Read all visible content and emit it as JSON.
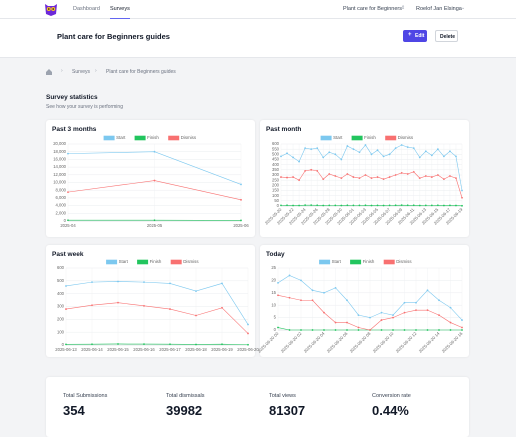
{
  "nav": {
    "links": [
      "Dashboard",
      "Surveys"
    ],
    "project": "Plant care for Beginners",
    "user": "Roelof Jan Elsinga"
  },
  "header": {
    "title": "Plant care for Beginners guides",
    "buttons": [
      "Edit",
      "Delete"
    ]
  },
  "breadcrumb": [
    "Surveys",
    "Plant care for Beginners guides"
  ],
  "section": {
    "title": "Survey statistics",
    "subtitle": "See how your survey is performing"
  },
  "chart_data": [
    {
      "type": "line",
      "title": "Past 3 months",
      "legend": "top",
      "grid": true,
      "categories": [
        "2025-04",
        "2025-05",
        "2025-06"
      ],
      "series": [
        {
          "name": "Start",
          "color": "#7cc8ef",
          "values": [
            17500,
            18000,
            9500
          ]
        },
        {
          "name": "Finish",
          "color": "#22c55e",
          "values": [
            200,
            200,
            150
          ]
        },
        {
          "name": "Dismiss",
          "color": "#f87171",
          "values": [
            7500,
            10500,
            5500
          ]
        }
      ],
      "ylim": [
        0,
        20000
      ],
      "yticks": [
        0,
        {
          "value": 2000,
          "label": "2,000"
        },
        {
          "value": 4000,
          "label": "4,000"
        },
        {
          "value": 6000,
          "label": "6,000"
        },
        {
          "value": 8000,
          "label": "8,000"
        },
        {
          "value": 10000,
          "label": "10,000"
        },
        {
          "value": 12000,
          "label": "12,000"
        },
        {
          "value": 14000,
          "label": "14,000"
        },
        {
          "value": 16000,
          "label": "16,000"
        },
        {
          "value": 18000,
          "label": "18,000"
        },
        {
          "value": 20000,
          "label": "20,000"
        }
      ]
    },
    {
      "type": "line",
      "title": "Past month",
      "legend": "top",
      "grid": true,
      "rotate_labels": true,
      "categories": [
        "2025-05-20",
        null,
        "2025-05-22",
        null,
        "2025-05-24",
        null,
        "2025-05-26",
        null,
        "2025-05-28",
        null,
        "2025-05-30",
        null,
        "2025-06-01",
        null,
        "2025-06-03",
        null,
        "2025-06-05",
        null,
        "2025-06-07",
        null,
        "2025-06-09",
        null,
        "2025-06-11",
        null,
        "2025-06-13",
        null,
        "2025-06-15",
        null,
        "2025-06-17",
        null,
        "2025-06-19"
      ],
      "series": [
        {
          "name": "Start",
          "color": "#7cc8ef",
          "values": [
            480,
            510,
            470,
            430,
            560,
            550,
            560,
            470,
            520,
            500,
            450,
            580,
            550,
            520,
            590,
            500,
            540,
            480,
            500,
            560,
            590,
            570,
            560,
            470,
            530,
            490,
            550,
            480,
            530,
            480,
            150
          ]
        },
        {
          "name": "Finish",
          "color": "#22c55e",
          "values": [
            6,
            7,
            5,
            5,
            8,
            8,
            7,
            5,
            6,
            6,
            5,
            7,
            6,
            6,
            7,
            5,
            6,
            5,
            6,
            7,
            8,
            7,
            7,
            5,
            6,
            6,
            7,
            5,
            6,
            5,
            2
          ]
        },
        {
          "name": "Dismiss",
          "color": "#f87171",
          "values": [
            280,
            275,
            280,
            250,
            340,
            350,
            340,
            260,
            310,
            290,
            270,
            310,
            280,
            270,
            300,
            270,
            280,
            260,
            280,
            300,
            320,
            310,
            330,
            270,
            290,
            280,
            300,
            260,
            290,
            270,
            80
          ]
        }
      ],
      "ylim": [
        0,
        600
      ],
      "yticks": [
        0,
        50,
        100,
        150,
        200,
        250,
        300,
        350,
        400,
        450,
        500,
        550,
        600
      ]
    },
    {
      "type": "line",
      "title": "Past week",
      "legend": "top",
      "grid": true,
      "categories": [
        "2025-06-13",
        "2025-06-14",
        "2025-06-15",
        "2025-06-16",
        "2025-06-17",
        "2025-06-18",
        "2025-06-19",
        "2025-06-20"
      ],
      "series": [
        {
          "name": "Start",
          "color": "#7cc8ef",
          "values": [
            460,
            490,
            495,
            490,
            480,
            420,
            480,
            160
          ]
        },
        {
          "name": "Finish",
          "color": "#22c55e",
          "values": [
            5,
            6,
            8,
            7,
            6,
            4,
            6,
            2
          ]
        },
        {
          "name": "Dismiss",
          "color": "#f87171",
          "values": [
            280,
            310,
            330,
            305,
            280,
            230,
            290,
            90
          ]
        }
      ],
      "ylim": [
        0,
        600
      ],
      "yticks": [
        0,
        100,
        200,
        300,
        400,
        500,
        600
      ]
    },
    {
      "type": "line",
      "title": "Today",
      "legend": "top",
      "grid": true,
      "rotate_labels": true,
      "categories": [
        "2025-06-20 00",
        null,
        "2025-06-20 02",
        null,
        "2025-06-20 04",
        null,
        "2025-06-20 06",
        null,
        "2025-06-20 08",
        null,
        "2025-06-20 10",
        null,
        "2025-06-20 12",
        null,
        "2025-06-20 14",
        null,
        "2025-06-20 16"
      ],
      "series": [
        {
          "name": "Start",
          "color": "#7cc8ef",
          "values": [
            19,
            22,
            20,
            16,
            15,
            17,
            12,
            6,
            5,
            7,
            6,
            11,
            11,
            16,
            12,
            9,
            4
          ]
        },
        {
          "name": "Finish",
          "color": "#22c55e",
          "values": [
            1,
            0,
            0,
            0,
            0,
            0,
            0,
            0,
            0,
            0,
            0,
            0,
            0,
            0,
            0,
            0,
            0
          ]
        },
        {
          "name": "Dismiss",
          "color": "#f87171",
          "values": [
            14,
            13,
            12,
            12,
            7,
            3,
            3,
            1,
            0,
            4,
            5,
            7,
            8,
            8,
            6,
            3,
            1
          ]
        }
      ],
      "ylim": [
        0,
        25
      ],
      "yticks": [
        0,
        5,
        10,
        15,
        20,
        25
      ]
    }
  ],
  "stats": [
    {
      "label": "Total Submissions",
      "value": 354
    },
    {
      "label": "Total dismissals",
      "value": 39982
    },
    {
      "label": "Total views",
      "value": 81307
    },
    {
      "label": "Conversion rate",
      "value": "0.44%"
    }
  ]
}
